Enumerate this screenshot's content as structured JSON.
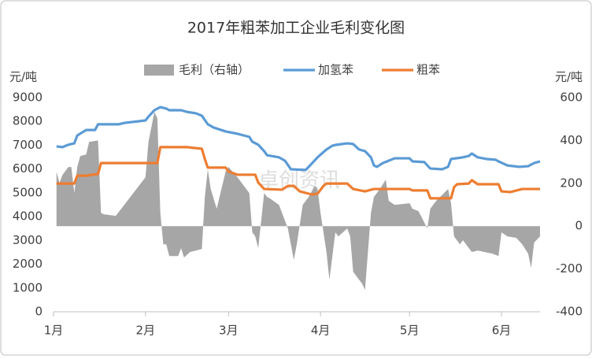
{
  "chart_data": {
    "type": "line",
    "title": "2017年粗苯加工企业毛利变化图",
    "y_label": "元/吨",
    "y2_label": "元/吨",
    "watermark": "卓创资讯",
    "xlim": [
      0,
      164
    ],
    "xticks": [
      {
        "value": 0,
        "label": "1月"
      },
      {
        "value": 31,
        "label": "2月"
      },
      {
        "value": 59,
        "label": "3月"
      },
      {
        "value": 90,
        "label": "4月"
      },
      {
        "value": 120,
        "label": "5月"
      },
      {
        "value": 151,
        "label": "6月"
      }
    ],
    "ylim": [
      0,
      9000
    ],
    "yticks": [
      0,
      1000,
      2000,
      3000,
      4000,
      5000,
      6000,
      7000,
      8000,
      9000
    ],
    "y2lim": [
      -400,
      600
    ],
    "y2ticks": [
      -400,
      -200,
      0,
      200,
      400,
      600
    ],
    "grid": false,
    "legend": "top",
    "series": [
      {
        "name": "毛利（右轴）",
        "kind": "area",
        "axis": "y2",
        "color": "#a6a6a6",
        "x": [
          1,
          2,
          3,
          5,
          6,
          7,
          8,
          9,
          11,
          12,
          15,
          16,
          17,
          21,
          31,
          32,
          34,
          35,
          36,
          37,
          38,
          39,
          42,
          43,
          44,
          46,
          48,
          50,
          51,
          52,
          53,
          55,
          58,
          59,
          62,
          64,
          66,
          67,
          68,
          69,
          71,
          72,
          73,
          76,
          79,
          81,
          82,
          84,
          86,
          88,
          89,
          90,
          92,
          93,
          95,
          96,
          99,
          100,
          101,
          103,
          104,
          105,
          107,
          108,
          110,
          112,
          113,
          115,
          120,
          121,
          123,
          124,
          126,
          127,
          129,
          133,
          134,
          135,
          137,
          138,
          141,
          143,
          148,
          150,
          151,
          153,
          156,
          158,
          160,
          161,
          162,
          164
        ],
        "values": [
          254,
          202,
          239,
          276,
          276,
          154,
          276,
          327,
          335,
          393,
          400,
          62,
          55,
          48,
          228,
          393,
          533,
          504,
          62,
          -85,
          -85,
          -140,
          -140,
          -103,
          -147,
          -121,
          -114,
          -107,
          136,
          265,
          173,
          81,
          254,
          276,
          228,
          191,
          154,
          -29,
          -48,
          -103,
          154,
          136,
          129,
          99,
          -11,
          -158,
          -85,
          99,
          136,
          188,
          173,
          62,
          -121,
          -250,
          -29,
          -48,
          -11,
          -48,
          -213,
          -250,
          -268,
          -298,
          62,
          136,
          173,
          217,
          118,
          99,
          107,
          81,
          70,
          44,
          -11,
          81,
          118,
          173,
          107,
          -48,
          -85,
          -66,
          -121,
          -114,
          -129,
          -140,
          -29,
          -48,
          -55,
          -85,
          -129,
          -195,
          -77,
          -48
        ]
      },
      {
        "name": "加氢苯",
        "kind": "line",
        "color": "#5b9bd5",
        "x": [
          1,
          3,
          5,
          7,
          8,
          11,
          14,
          15,
          22,
          24,
          31,
          32,
          34,
          36,
          38,
          39,
          43,
          45,
          48,
          50,
          52,
          54,
          58,
          62,
          66,
          67,
          69,
          71,
          72,
          76,
          78,
          80,
          85,
          87,
          89,
          92,
          94,
          95,
          99,
          101,
          103,
          105,
          107,
          108,
          109,
          111,
          113,
          115,
          120,
          121,
          125,
          127,
          131,
          133,
          134,
          138,
          140,
          141,
          143,
          146,
          149,
          150,
          153,
          157,
          160,
          162,
          164
        ],
        "values": [
          6950,
          6920,
          7020,
          7080,
          7410,
          7640,
          7640,
          7880,
          7880,
          7940,
          8040,
          8200,
          8470,
          8600,
          8540,
          8470,
          8470,
          8400,
          8340,
          8240,
          7880,
          7740,
          7580,
          7480,
          7350,
          7150,
          7020,
          6750,
          6580,
          6490,
          6350,
          5990,
          5960,
          6220,
          6490,
          6820,
          6980,
          7010,
          7080,
          7050,
          6820,
          6750,
          6490,
          6150,
          6090,
          6250,
          6350,
          6450,
          6450,
          6320,
          6290,
          6020,
          5990,
          6090,
          6420,
          6490,
          6550,
          6650,
          6490,
          6420,
          6390,
          6320,
          6150,
          6090,
          6120,
          6250,
          6320
        ]
      },
      {
        "name": "粗苯",
        "kind": "line",
        "color": "#ed7d31",
        "x": [
          1,
          7,
          8,
          11,
          15,
          16,
          35,
          36,
          45,
          47,
          50,
          51,
          52,
          58,
          59,
          62,
          68,
          69,
          71,
          77,
          79,
          81,
          83,
          87,
          89,
          91,
          92,
          99,
          101,
          105,
          108,
          114,
          120,
          121,
          126,
          127,
          134,
          135,
          136,
          140,
          141,
          143,
          150,
          151,
          154,
          158,
          160,
          164
        ],
        "values": [
          5390,
          5390,
          5720,
          5720,
          5790,
          6250,
          6250,
          6920,
          6920,
          6890,
          6850,
          6420,
          6060,
          6060,
          5890,
          5760,
          5760,
          5430,
          5160,
          5130,
          5290,
          5290,
          5060,
          4930,
          4960,
          5290,
          5390,
          5390,
          5160,
          5060,
          5160,
          5160,
          5160,
          5100,
          5100,
          4770,
          4770,
          5230,
          5360,
          5390,
          5530,
          5360,
          5360,
          5060,
          5030,
          5160,
          5160,
          5160
        ]
      }
    ]
  }
}
